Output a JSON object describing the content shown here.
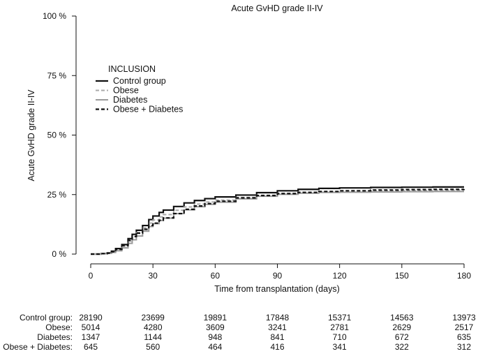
{
  "chart_data": {
    "type": "line",
    "title": "Acute GvHD grade II-IV",
    "xlabel": "Time from transplantation (days)",
    "ylabel": "Acute GvHD grade II-IV",
    "xlim": [
      0,
      180
    ],
    "ylim": [
      0,
      100
    ],
    "x_ticks": [
      0,
      30,
      60,
      90,
      120,
      150,
      180
    ],
    "x_tick_labels": [
      "0",
      "30",
      "60",
      "90",
      "120",
      "150",
      "180"
    ],
    "y_ticks": [
      0,
      25,
      50,
      75,
      100
    ],
    "y_tick_labels": [
      "0 %",
      "25 %",
      "50 %",
      "75 %",
      "100 %"
    ],
    "grid": false,
    "legend": {
      "title": "INCLUSION",
      "placement": "top-left"
    },
    "series": [
      {
        "name": "Control group",
        "color": "#111111",
        "dash": "solid",
        "width": 2.2,
        "x": [
          0,
          5,
          8,
          10,
          12,
          15,
          18,
          20,
          22,
          25,
          28,
          30,
          33,
          35,
          40,
          45,
          50,
          55,
          60,
          70,
          80,
          90,
          100,
          110,
          120,
          135,
          150,
          165,
          180
        ],
        "y": [
          0,
          0.2,
          0.5,
          1.2,
          2.3,
          4.0,
          6.5,
          8.3,
          10.0,
          12.0,
          14.5,
          16.0,
          17.5,
          18.5,
          20.0,
          21.5,
          22.5,
          23.3,
          24.0,
          24.8,
          25.8,
          26.6,
          27.2,
          27.6,
          27.8,
          28.0,
          28.1,
          28.2,
          28.2
        ]
      },
      {
        "name": "Obese",
        "color": "#aaaaaa",
        "dash": "dashed",
        "width": 2.0,
        "x": [
          0,
          5,
          8,
          10,
          12,
          15,
          18,
          20,
          22,
          25,
          28,
          30,
          33,
          35,
          40,
          45,
          50,
          55,
          60,
          70,
          80,
          90,
          100,
          110,
          120,
          135,
          150,
          165,
          180
        ],
        "y": [
          0,
          0.2,
          0.4,
          0.9,
          1.8,
          3.3,
          5.5,
          7.3,
          9.0,
          11.0,
          13.0,
          14.3,
          15.6,
          16.6,
          18.4,
          19.8,
          21.0,
          21.9,
          22.7,
          23.8,
          24.7,
          25.5,
          26.0,
          26.3,
          26.5,
          26.6,
          26.7,
          26.8,
          26.8
        ]
      },
      {
        "name": "Diabetes",
        "color": "#9a9a9a",
        "dash": "solid",
        "width": 2.0,
        "x": [
          0,
          5,
          8,
          10,
          12,
          15,
          18,
          20,
          22,
          25,
          28,
          30,
          33,
          35,
          40,
          45,
          50,
          55,
          60,
          70,
          80,
          90,
          100,
          110,
          120,
          135,
          150,
          165,
          180
        ],
        "y": [
          0,
          0.1,
          0.3,
          0.7,
          1.4,
          2.6,
          4.5,
          6.0,
          7.6,
          9.6,
          11.6,
          12.8,
          14.1,
          15.1,
          17.0,
          18.6,
          19.9,
          20.9,
          21.8,
          23.2,
          24.3,
          25.1,
          25.6,
          25.9,
          26.0,
          26.1,
          26.2,
          26.3,
          26.3
        ]
      },
      {
        "name": "Obese + Diabetes",
        "color": "#111111",
        "dash": "dashed",
        "width": 2.2,
        "x": [
          0,
          5,
          8,
          10,
          12,
          15,
          18,
          20,
          22,
          25,
          28,
          30,
          33,
          35,
          40,
          45,
          50,
          55,
          60,
          70,
          80,
          90,
          100,
          110,
          120,
          135,
          150,
          165,
          180
        ],
        "y": [
          0,
          0.2,
          0.4,
          1.0,
          2.0,
          3.6,
          5.8,
          7.4,
          8.8,
          10.4,
          12.0,
          13.0,
          14.2,
          15.2,
          17.0,
          18.8,
          20.2,
          21.2,
          22.2,
          23.6,
          24.6,
          25.4,
          25.9,
          26.3,
          26.6,
          26.9,
          27.1,
          27.2,
          27.3
        ]
      }
    ],
    "risk_table": {
      "times": [
        0,
        30,
        60,
        90,
        120,
        150,
        180
      ],
      "rows": [
        {
          "label": "Control group:",
          "values": [
            "28190",
            "23699",
            "19891",
            "17848",
            "15371",
            "14563",
            "13973"
          ]
        },
        {
          "label": "Obese:",
          "values": [
            "5014",
            "4280",
            "3609",
            "3241",
            "2781",
            "2629",
            "2517"
          ]
        },
        {
          "label": "Diabetes:",
          "values": [
            "1347",
            "1144",
            "948",
            "841",
            "710",
            "672",
            "635"
          ]
        },
        {
          "label": "Obese + Diabetes:",
          "values": [
            "645",
            "560",
            "464",
            "416",
            "341",
            "322",
            "312"
          ]
        }
      ]
    }
  }
}
